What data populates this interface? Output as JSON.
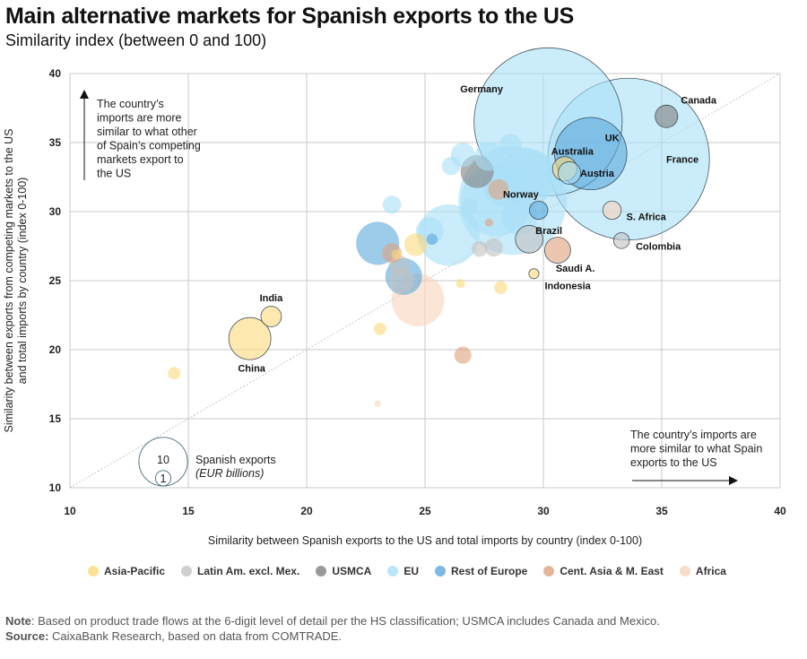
{
  "header": {
    "title": "Main alternative markets for Spanish exports to the US",
    "subtitle": "Similarity index (between 0 and 100)"
  },
  "chart_data": {
    "type": "scatter",
    "subtype": "bubble",
    "title": "Main alternative markets for Spanish exports to the US",
    "subtitle": "Similarity index (between 0 and 100)",
    "xlabel": "Similarity between Spanish exports to the US and total imports by country (index 0-100)",
    "ylabel": "Similarity between exports from competing markets to the US and total imports by country (index 0-100)",
    "xlim": [
      10,
      40
    ],
    "ylim": [
      10,
      40
    ],
    "xticks": [
      "10",
      "15",
      "20",
      "25",
      "30",
      "35",
      "40"
    ],
    "yticks": [
      "10",
      "15",
      "20",
      "25",
      "30",
      "35",
      "40"
    ],
    "grid": true,
    "diagonal_reference_line": true,
    "size_legend": {
      "label": "Spanish exports",
      "unit": "(EUR billions)",
      "values": [
        "10",
        "1"
      ]
    },
    "annotations": [
      {
        "text": [
          "The country’s",
          "imports are more",
          "similar to what other",
          "of Spain’s competing",
          "markets export to",
          "the US"
        ],
        "arrow": "up",
        "position": "top-left"
      },
      {
        "text": [
          "The country’s imports are",
          "more similar to what Spain",
          "exports to the US"
        ],
        "arrow": "right",
        "position": "bottom-right"
      }
    ],
    "groups": [
      {
        "name": "Asia-Pacific",
        "color": "#fcd97a"
      },
      {
        "name": "Latin Am. excl. Mex.",
        "color": "#c2c2c2"
      },
      {
        "name": "USMCA",
        "color": "#7f7f7f"
      },
      {
        "name": "EU",
        "color": "#a8e0f7"
      },
      {
        "name": "Rest of Europe",
        "color": "#5ba8dc"
      },
      {
        "name": "Cent. Asia & M. East",
        "color": "#dea27f"
      },
      {
        "name": "Africa",
        "color": "#f8d3bd"
      }
    ],
    "points": [
      {
        "label": "Germany",
        "group": "EU",
        "x": 30.2,
        "y": 36.5,
        "size": 26.0,
        "labeled": true
      },
      {
        "label": "France",
        "group": "EU",
        "x": 33.6,
        "y": 33.8,
        "size": 31.0,
        "labeled": true
      },
      {
        "label": "UK",
        "group": "Rest of Europe",
        "x": 32.0,
        "y": 34.2,
        "size": 6.2,
        "labeled": true
      },
      {
        "label": "Canada",
        "group": "USMCA",
        "x": 35.2,
        "y": 36.9,
        "size": 0.6,
        "labeled": true
      },
      {
        "label": "Australia",
        "group": "Asia-Pacific",
        "x": 30.9,
        "y": 33.1,
        "size": 0.7,
        "labeled": true
      },
      {
        "label": "Austria",
        "group": "EU",
        "x": 31.1,
        "y": 32.8,
        "size": 0.6,
        "labeled": true
      },
      {
        "label": "Norway",
        "group": "Rest of Europe",
        "x": 29.8,
        "y": 30.1,
        "size": 0.4,
        "labeled": true
      },
      {
        "label": "Brazil",
        "group": "Latin Am. excl. Mex.",
        "x": 29.4,
        "y": 28.0,
        "size": 0.9,
        "labeled": true
      },
      {
        "label": "Saudi A.",
        "group": "Cent. Asia & M. East",
        "x": 30.6,
        "y": 27.2,
        "size": 0.8,
        "labeled": true
      },
      {
        "label": "Indonesia",
        "group": "Asia-Pacific",
        "x": 29.6,
        "y": 25.5,
        "size": 0.12,
        "labeled": true
      },
      {
        "label": "S. Africa",
        "group": "Africa",
        "x": 32.9,
        "y": 30.1,
        "size": 0.4,
        "labeled": true
      },
      {
        "label": "Colombia",
        "group": "Latin Am. excl. Mex.",
        "x": 33.3,
        "y": 27.9,
        "size": 0.3,
        "labeled": true
      },
      {
        "label": "China",
        "group": "Asia-Pacific",
        "x": 17.6,
        "y": 20.8,
        "size": 2.1,
        "labeled": true
      },
      {
        "label": "India",
        "group": "Asia-Pacific",
        "x": 18.5,
        "y": 22.4,
        "size": 0.5,
        "labeled": true
      },
      {
        "label": "",
        "group": "EU",
        "x": 28.7,
        "y": 30.8,
        "size": 14.0,
        "labeled": false
      },
      {
        "label": "",
        "group": "EU",
        "x": 28.0,
        "y": 30.8,
        "size": 6.0,
        "labeled": false
      },
      {
        "label": "",
        "group": "EU",
        "x": 29.3,
        "y": 32.5,
        "size": 4.0,
        "labeled": false
      },
      {
        "label": "",
        "group": "EU",
        "x": 28.4,
        "y": 32.0,
        "size": 2.5,
        "labeled": false
      },
      {
        "label": "",
        "group": "EU",
        "x": 29.0,
        "y": 29.6,
        "size": 1.5,
        "labeled": false
      },
      {
        "label": "",
        "group": "EU",
        "x": 26.0,
        "y": 28.3,
        "size": 4.5,
        "labeled": false
      },
      {
        "label": "",
        "group": "EU",
        "x": 25.2,
        "y": 28.6,
        "size": 0.9,
        "labeled": false
      },
      {
        "label": "",
        "group": "EU",
        "x": 26.6,
        "y": 34.1,
        "size": 0.7,
        "labeled": false
      },
      {
        "label": "",
        "group": "EU",
        "x": 26.1,
        "y": 33.3,
        "size": 0.4,
        "labeled": false
      },
      {
        "label": "",
        "group": "EU",
        "x": 27.7,
        "y": 34.0,
        "size": 1.0,
        "labeled": false
      },
      {
        "label": "",
        "group": "EU",
        "x": 28.6,
        "y": 34.8,
        "size": 0.6,
        "labeled": false
      },
      {
        "label": "",
        "group": "EU",
        "x": 23.6,
        "y": 30.5,
        "size": 0.4,
        "labeled": false
      },
      {
        "label": "",
        "group": "EU",
        "x": 26.9,
        "y": 30.4,
        "size": 0.3,
        "labeled": false
      },
      {
        "label": "",
        "group": "EU",
        "x": 29.6,
        "y": 32.9,
        "size": 1.8,
        "labeled": false
      },
      {
        "label": "",
        "group": "USMCA",
        "x": 27.2,
        "y": 32.9,
        "size": 1.3,
        "labeled": false
      },
      {
        "label": "",
        "group": "Rest of Europe",
        "x": 23.0,
        "y": 27.7,
        "size": 2.2,
        "labeled": false
      },
      {
        "label": "",
        "group": "Rest of Europe",
        "x": 24.1,
        "y": 25.3,
        "size": 1.6,
        "labeled": false
      },
      {
        "label": "",
        "group": "Rest of Europe",
        "x": 25.3,
        "y": 28.0,
        "size": 0.15,
        "labeled": false
      },
      {
        "label": "",
        "group": "Cent. Asia & M. East",
        "x": 23.6,
        "y": 27.0,
        "size": 0.45,
        "labeled": false
      },
      {
        "label": "",
        "group": "Cent. Asia & M. East",
        "x": 28.1,
        "y": 31.6,
        "size": 0.5,
        "labeled": false
      },
      {
        "label": "",
        "group": "Cent. Asia & M. East",
        "x": 27.7,
        "y": 29.2,
        "size": 0.08,
        "labeled": false
      },
      {
        "label": "",
        "group": "Cent. Asia & M. East",
        "x": 26.6,
        "y": 19.6,
        "size": 0.35,
        "labeled": false
      },
      {
        "label": "",
        "group": "Latin Am. excl. Mex.",
        "x": 27.3,
        "y": 27.3,
        "size": 0.3,
        "labeled": false
      },
      {
        "label": "",
        "group": "Latin Am. excl. Mex.",
        "x": 27.9,
        "y": 27.4,
        "size": 0.4,
        "labeled": false
      },
      {
        "label": "",
        "group": "Latin Am. excl. Mex.",
        "x": 24.0,
        "y": 25.0,
        "size": 0.8,
        "labeled": false
      },
      {
        "label": "",
        "group": "Latin Am. excl. Mex.",
        "x": 23.9,
        "y": 26.1,
        "size": 0.5,
        "labeled": false
      },
      {
        "label": "",
        "group": "Asia-Pacific",
        "x": 24.6,
        "y": 27.6,
        "size": 0.6,
        "labeled": false
      },
      {
        "label": "",
        "group": "Asia-Pacific",
        "x": 23.8,
        "y": 26.9,
        "size": 0.12,
        "labeled": false
      },
      {
        "label": "",
        "group": "Asia-Pacific",
        "x": 26.5,
        "y": 24.8,
        "size": 0.1,
        "labeled": false
      },
      {
        "label": "",
        "group": "Asia-Pacific",
        "x": 28.2,
        "y": 24.5,
        "size": 0.2,
        "labeled": false
      },
      {
        "label": "",
        "group": "Asia-Pacific",
        "x": 23.1,
        "y": 21.5,
        "size": 0.18,
        "labeled": false
      },
      {
        "label": "",
        "group": "Asia-Pacific",
        "x": 14.4,
        "y": 18.3,
        "size": 0.18,
        "labeled": false
      },
      {
        "label": "",
        "group": "Africa",
        "x": 24.7,
        "y": 23.6,
        "size": 3.3,
        "labeled": false
      },
      {
        "label": "",
        "group": "Africa",
        "x": 23.0,
        "y": 16.1,
        "size": 0.05,
        "labeled": false
      }
    ]
  },
  "footer": {
    "note_label": "Note",
    "note_text": ": Based on product trade flows at the 6-digit level of detail per the HS classification; USMCA includes Canada and Mexico.",
    "source_label": "Source:",
    "source_text": " CaixaBank Research, based on data from COMTRADE."
  }
}
